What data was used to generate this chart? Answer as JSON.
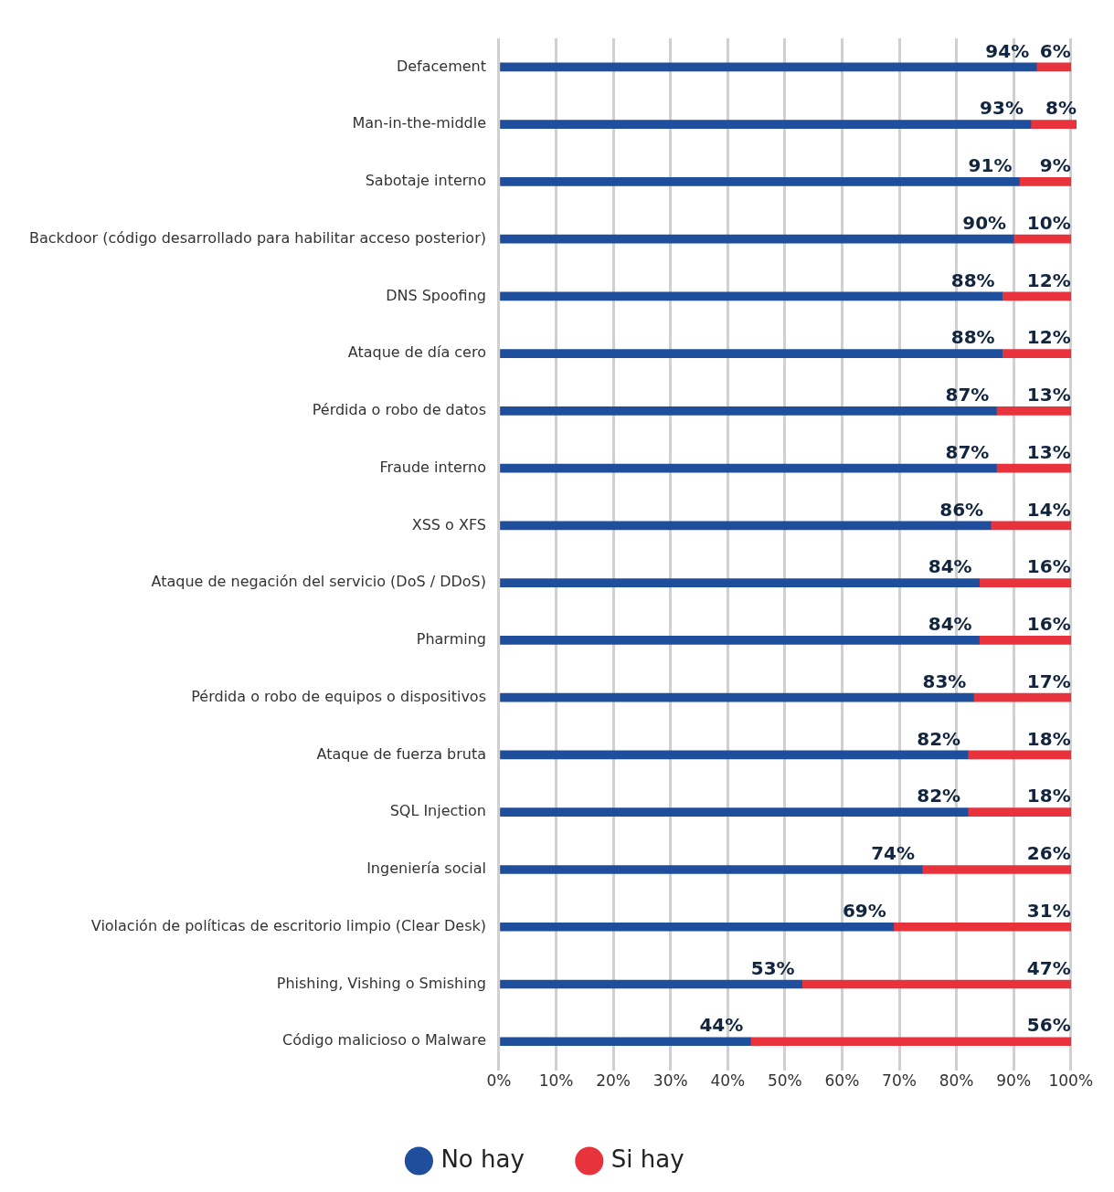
{
  "chart_data": {
    "type": "bar",
    "orientation": "horizontal",
    "stacked": true,
    "categories": [
      "Defacement",
      "Man-in-the-middle",
      "Sabotaje interno",
      "Backdoor (código desarrollado para habilitar acceso posterior)",
      "DNS Spoofing",
      "Ataque de día cero",
      "Pérdida o robo de datos",
      "Fraude interno",
      "XSS o XFS",
      "Ataque de negación del servicio (DoS / DDoS)",
      "Pharming",
      "Pérdida o robo de equipos o dispositivos",
      "Ataque de fuerza bruta",
      "SQL Injection",
      "Ingeniería social",
      "Violación de políticas de escritorio limpio (Clear Desk)",
      "Phishing, Vishing o Smishing",
      "Código malicioso o Malware"
    ],
    "series": [
      {
        "name": "No hay",
        "color": "#1f4e9c",
        "values": [
          94,
          93,
          91,
          90,
          88,
          88,
          87,
          87,
          86,
          84,
          84,
          83,
          82,
          82,
          74,
          69,
          53,
          44
        ],
        "value_labels": [
          "94%",
          "93%",
          "91%",
          "90%",
          "88%",
          "88%",
          "87%",
          "87%",
          "86%",
          "84%",
          "84%",
          "83%",
          "82%",
          "82%",
          "74%",
          "69%",
          "53%",
          "44%"
        ]
      },
      {
        "name": "Si hay",
        "color": "#e8323c",
        "values": [
          6,
          8,
          9,
          10,
          12,
          12,
          13,
          13,
          14,
          16,
          16,
          17,
          18,
          18,
          26,
          31,
          47,
          56
        ],
        "value_labels": [
          "6%",
          "8%",
          "9%",
          "10%",
          "12%",
          "12%",
          "13%",
          "13%",
          "14%",
          "16%",
          "16%",
          "17%",
          "18%",
          "18%",
          "26%",
          "31%",
          "47%",
          "56%"
        ]
      }
    ],
    "xlim": [
      0,
      101
    ],
    "xticks": [
      {
        "value": 0,
        "label": "0%"
      },
      {
        "value": 10,
        "label": "10%"
      },
      {
        "value": 20,
        "label": "20%"
      },
      {
        "value": 30,
        "label": "30%"
      },
      {
        "value": 40,
        "label": "40%"
      },
      {
        "value": 50,
        "label": "50%"
      },
      {
        "value": 60,
        "label": "60%"
      },
      {
        "value": 70,
        "label": "70%"
      },
      {
        "value": 80,
        "label": "80%"
      },
      {
        "value": 90,
        "label": "90%"
      },
      {
        "value": 100,
        "label": "100%"
      }
    ],
    "grid": "x",
    "legend": "bottom"
  }
}
